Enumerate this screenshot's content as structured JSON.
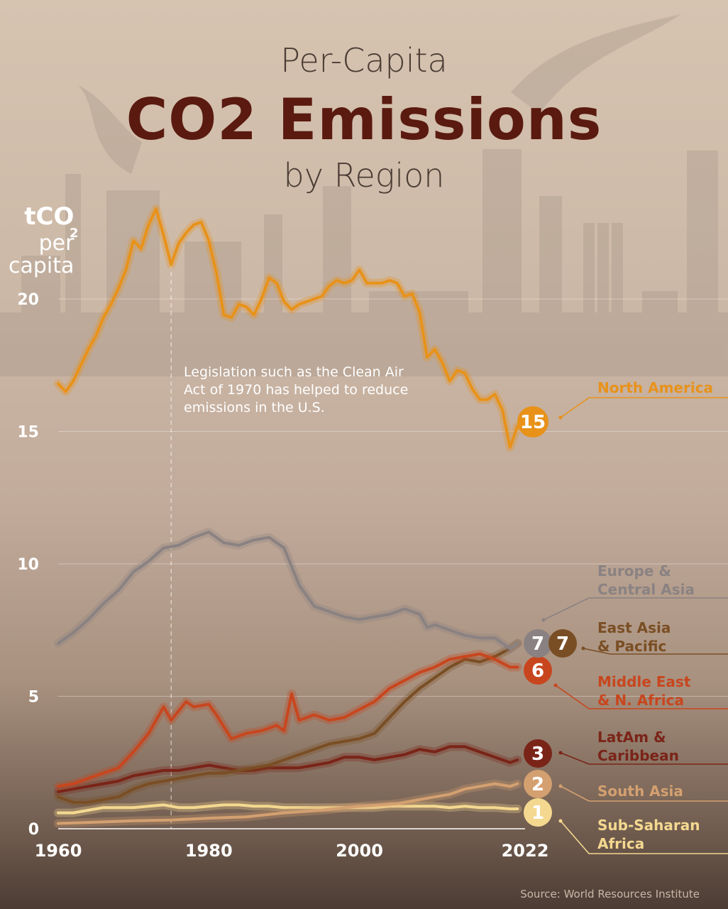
{
  "title": {
    "top": "Per-Capita",
    "main": "CO2 Emissions",
    "sub": "by Region"
  },
  "unit": {
    "line1": "tCO",
    "sub": "2",
    "line2": "per",
    "line3": "capita"
  },
  "annotation": "Legislation such as the Clean Air Act of 1970 has helped to reduce emissions in the U.S.",
  "source": "Source: World Resources Institute",
  "colors": {
    "north_america": "#e8921a",
    "europe": "#8a8282",
    "east_asia": "#7a4e24",
    "mena": "#c8461e",
    "latam": "#7a2418",
    "south_asia": "#d4a070",
    "ssa": "#f4d890"
  },
  "chart_data": {
    "type": "line",
    "title": "Per-Capita CO2 Emissions by Region",
    "xlabel": "",
    "ylabel": "tCO2 per capita",
    "xlim": [
      1960,
      2022
    ],
    "ylim": [
      0,
      24
    ],
    "x_ticks": [
      "1960",
      "1980",
      "2000",
      "2022"
    ],
    "y_ticks": [
      "0",
      "5",
      "10",
      "15",
      "20"
    ],
    "annotation_year": 1975,
    "series": [
      {
        "key": "north_america",
        "name": "North America",
        "end_label": "15",
        "points": [
          [
            1960,
            16.8
          ],
          [
            1961,
            16.5
          ],
          [
            1962,
            16.9
          ],
          [
            1963,
            17.5
          ],
          [
            1964,
            18.1
          ],
          [
            1965,
            18.6
          ],
          [
            1966,
            19.3
          ],
          [
            1967,
            19.8
          ],
          [
            1968,
            20.4
          ],
          [
            1969,
            21.1
          ],
          [
            1970,
            22.2
          ],
          [
            1971,
            21.9
          ],
          [
            1972,
            22.8
          ],
          [
            1973,
            23.4
          ],
          [
            1974,
            22.4
          ],
          [
            1975,
            21.3
          ],
          [
            1976,
            22.1
          ],
          [
            1977,
            22.5
          ],
          [
            1978,
            22.8
          ],
          [
            1979,
            22.9
          ],
          [
            1980,
            22.2
          ],
          [
            1981,
            21.0
          ],
          [
            1982,
            19.4
          ],
          [
            1983,
            19.3
          ],
          [
            1984,
            19.8
          ],
          [
            1985,
            19.7
          ],
          [
            1986,
            19.4
          ],
          [
            1987,
            20.0
          ],
          [
            1988,
            20.8
          ],
          [
            1989,
            20.6
          ],
          [
            1990,
            19.9
          ],
          [
            1991,
            19.6
          ],
          [
            1992,
            19.8
          ],
          [
            1993,
            19.9
          ],
          [
            1994,
            20.0
          ],
          [
            1995,
            20.1
          ],
          [
            1996,
            20.5
          ],
          [
            1997,
            20.7
          ],
          [
            1998,
            20.6
          ],
          [
            1999,
            20.7
          ],
          [
            2000,
            21.1
          ],
          [
            2001,
            20.6
          ],
          [
            2002,
            20.6
          ],
          [
            2003,
            20.6
          ],
          [
            2004,
            20.7
          ],
          [
            2005,
            20.6
          ],
          [
            2006,
            20.1
          ],
          [
            2007,
            20.2
          ],
          [
            2008,
            19.5
          ],
          [
            2009,
            17.8
          ],
          [
            2010,
            18.1
          ],
          [
            2011,
            17.6
          ],
          [
            2012,
            16.9
          ],
          [
            2013,
            17.3
          ],
          [
            2014,
            17.2
          ],
          [
            2015,
            16.6
          ],
          [
            2016,
            16.2
          ],
          [
            2017,
            16.2
          ],
          [
            2018,
            16.4
          ],
          [
            2019,
            15.8
          ],
          [
            2020,
            14.4
          ],
          [
            2021,
            15.2
          ]
        ]
      },
      {
        "key": "europe",
        "name": "Europe & Central Asia",
        "end_label": "7",
        "points": [
          [
            1960,
            7.0
          ],
          [
            1962,
            7.4
          ],
          [
            1964,
            7.9
          ],
          [
            1966,
            8.5
          ],
          [
            1968,
            9.0
          ],
          [
            1970,
            9.7
          ],
          [
            1972,
            10.1
          ],
          [
            1974,
            10.6
          ],
          [
            1976,
            10.7
          ],
          [
            1978,
            11.0
          ],
          [
            1980,
            11.2
          ],
          [
            1982,
            10.8
          ],
          [
            1984,
            10.7
          ],
          [
            1986,
            10.9
          ],
          [
            1988,
            11.0
          ],
          [
            1990,
            10.6
          ],
          [
            1992,
            9.2
          ],
          [
            1994,
            8.4
          ],
          [
            1996,
            8.2
          ],
          [
            1998,
            8.0
          ],
          [
            2000,
            7.9
          ],
          [
            2002,
            8.0
          ],
          [
            2004,
            8.1
          ],
          [
            2006,
            8.3
          ],
          [
            2008,
            8.1
          ],
          [
            2009,
            7.6
          ],
          [
            2010,
            7.7
          ],
          [
            2012,
            7.5
          ],
          [
            2014,
            7.3
          ],
          [
            2016,
            7.2
          ],
          [
            2018,
            7.2
          ],
          [
            2020,
            6.8
          ],
          [
            2021,
            7.0
          ]
        ]
      },
      {
        "key": "east_asia",
        "name": "East Asia & Pacific",
        "end_label": "7",
        "points": [
          [
            1960,
            1.2
          ],
          [
            1962,
            1.0
          ],
          [
            1964,
            1.0
          ],
          [
            1966,
            1.1
          ],
          [
            1968,
            1.2
          ],
          [
            1970,
            1.5
          ],
          [
            1972,
            1.7
          ],
          [
            1974,
            1.8
          ],
          [
            1976,
            1.9
          ],
          [
            1978,
            2.0
          ],
          [
            1980,
            2.1
          ],
          [
            1982,
            2.1
          ],
          [
            1984,
            2.2
          ],
          [
            1986,
            2.3
          ],
          [
            1988,
            2.4
          ],
          [
            1990,
            2.6
          ],
          [
            1992,
            2.8
          ],
          [
            1994,
            3.0
          ],
          [
            1996,
            3.2
          ],
          [
            1998,
            3.3
          ],
          [
            2000,
            3.4
          ],
          [
            2002,
            3.6
          ],
          [
            2004,
            4.2
          ],
          [
            2006,
            4.8
          ],
          [
            2008,
            5.3
          ],
          [
            2010,
            5.7
          ],
          [
            2012,
            6.1
          ],
          [
            2014,
            6.4
          ],
          [
            2016,
            6.3
          ],
          [
            2018,
            6.5
          ],
          [
            2020,
            6.8
          ],
          [
            2021,
            7.0
          ]
        ]
      },
      {
        "key": "mena",
        "name": "Middle East & N. Africa",
        "end_label": "6",
        "points": [
          [
            1960,
            1.6
          ],
          [
            1962,
            1.7
          ],
          [
            1964,
            1.9
          ],
          [
            1966,
            2.1
          ],
          [
            1968,
            2.3
          ],
          [
            1970,
            2.9
          ],
          [
            1972,
            3.6
          ],
          [
            1974,
            4.6
          ],
          [
            1975,
            4.1
          ],
          [
            1977,
            4.8
          ],
          [
            1978,
            4.6
          ],
          [
            1980,
            4.7
          ],
          [
            1981,
            4.3
          ],
          [
            1983,
            3.4
          ],
          [
            1985,
            3.6
          ],
          [
            1987,
            3.7
          ],
          [
            1989,
            3.9
          ],
          [
            1990,
            3.7
          ],
          [
            1991,
            5.1
          ],
          [
            1992,
            4.1
          ],
          [
            1994,
            4.3
          ],
          [
            1996,
            4.1
          ],
          [
            1998,
            4.2
          ],
          [
            2000,
            4.5
          ],
          [
            2002,
            4.8
          ],
          [
            2004,
            5.3
          ],
          [
            2006,
            5.6
          ],
          [
            2008,
            5.9
          ],
          [
            2010,
            6.1
          ],
          [
            2012,
            6.4
          ],
          [
            2014,
            6.5
          ],
          [
            2016,
            6.6
          ],
          [
            2018,
            6.4
          ],
          [
            2020,
            6.1
          ],
          [
            2021,
            6.1
          ]
        ]
      },
      {
        "key": "latam",
        "name": "LatAm & Caribbean",
        "end_label": "3",
        "points": [
          [
            1960,
            1.4
          ],
          [
            1962,
            1.5
          ],
          [
            1964,
            1.6
          ],
          [
            1966,
            1.7
          ],
          [
            1968,
            1.8
          ],
          [
            1970,
            2.0
          ],
          [
            1972,
            2.1
          ],
          [
            1974,
            2.2
          ],
          [
            1976,
            2.2
          ],
          [
            1978,
            2.3
          ],
          [
            1980,
            2.4
          ],
          [
            1982,
            2.3
          ],
          [
            1984,
            2.2
          ],
          [
            1986,
            2.2
          ],
          [
            1988,
            2.3
          ],
          [
            1990,
            2.3
          ],
          [
            1992,
            2.3
          ],
          [
            1994,
            2.4
          ],
          [
            1996,
            2.5
          ],
          [
            1998,
            2.7
          ],
          [
            2000,
            2.7
          ],
          [
            2002,
            2.6
          ],
          [
            2004,
            2.7
          ],
          [
            2006,
            2.8
          ],
          [
            2008,
            3.0
          ],
          [
            2010,
            2.9
          ],
          [
            2012,
            3.1
          ],
          [
            2014,
            3.1
          ],
          [
            2016,
            2.9
          ],
          [
            2018,
            2.7
          ],
          [
            2020,
            2.5
          ],
          [
            2021,
            2.6
          ]
        ]
      },
      {
        "key": "south_asia",
        "name": "South Asia",
        "end_label": "2",
        "points": [
          [
            1960,
            0.2
          ],
          [
            1965,
            0.25
          ],
          [
            1970,
            0.3
          ],
          [
            1975,
            0.33
          ],
          [
            1980,
            0.4
          ],
          [
            1985,
            0.45
          ],
          [
            1990,
            0.6
          ],
          [
            1995,
            0.7
          ],
          [
            2000,
            0.85
          ],
          [
            2005,
            0.95
          ],
          [
            2008,
            1.1
          ],
          [
            2010,
            1.2
          ],
          [
            2012,
            1.3
          ],
          [
            2014,
            1.5
          ],
          [
            2016,
            1.6
          ],
          [
            2018,
            1.7
          ],
          [
            2020,
            1.6
          ],
          [
            2021,
            1.7
          ]
        ]
      },
      {
        "key": "ssa",
        "name": "Sub-Saharan Africa",
        "end_label": "1",
        "points": [
          [
            1960,
            0.6
          ],
          [
            1962,
            0.6
          ],
          [
            1964,
            0.7
          ],
          [
            1966,
            0.8
          ],
          [
            1968,
            0.8
          ],
          [
            1970,
            0.8
          ],
          [
            1972,
            0.85
          ],
          [
            1974,
            0.9
          ],
          [
            1976,
            0.8
          ],
          [
            1978,
            0.8
          ],
          [
            1980,
            0.85
          ],
          [
            1982,
            0.9
          ],
          [
            1984,
            0.9
          ],
          [
            1986,
            0.85
          ],
          [
            1988,
            0.85
          ],
          [
            1990,
            0.8
          ],
          [
            1992,
            0.8
          ],
          [
            1994,
            0.8
          ],
          [
            1996,
            0.8
          ],
          [
            1998,
            0.8
          ],
          [
            2000,
            0.8
          ],
          [
            2002,
            0.8
          ],
          [
            2004,
            0.85
          ],
          [
            2006,
            0.85
          ],
          [
            2008,
            0.85
          ],
          [
            2010,
            0.85
          ],
          [
            2012,
            0.8
          ],
          [
            2014,
            0.85
          ],
          [
            2016,
            0.8
          ],
          [
            2018,
            0.8
          ],
          [
            2020,
            0.75
          ],
          [
            2021,
            0.75
          ]
        ]
      }
    ],
    "legend": [
      {
        "key": "north_america",
        "lines": [
          "North America"
        ]
      },
      {
        "key": "europe",
        "lines": [
          "Europe &",
          "Central Asia"
        ]
      },
      {
        "key": "east_asia",
        "lines": [
          "East Asia",
          "& Pacific"
        ]
      },
      {
        "key": "mena",
        "lines": [
          "Middle East",
          "& N. Africa"
        ]
      },
      {
        "key": "latam",
        "lines": [
          "LatAm &",
          "Caribbean"
        ]
      },
      {
        "key": "south_asia",
        "lines": [
          "South Asia"
        ]
      },
      {
        "key": "ssa",
        "lines": [
          "Sub-Saharan",
          "Africa"
        ]
      }
    ]
  }
}
